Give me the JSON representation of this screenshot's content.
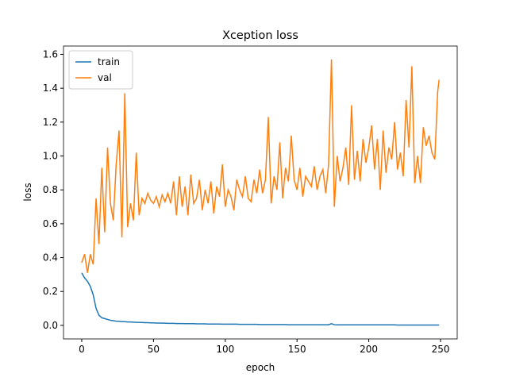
{
  "chart_data": {
    "type": "line",
    "title": "Xception loss",
    "x_label": "epoch",
    "y_label": "loss",
    "x": [
      0,
      2,
      4,
      6,
      8,
      10,
      12,
      14,
      16,
      18,
      20,
      22,
      24,
      26,
      28,
      30,
      32,
      34,
      36,
      38,
      40,
      42,
      44,
      46,
      48,
      50,
      52,
      54,
      56,
      58,
      60,
      62,
      64,
      66,
      68,
      70,
      72,
      74,
      76,
      78,
      80,
      82,
      84,
      86,
      88,
      90,
      92,
      94,
      96,
      98,
      100,
      102,
      104,
      106,
      108,
      110,
      112,
      114,
      116,
      118,
      120,
      122,
      124,
      126,
      128,
      130,
      132,
      134,
      136,
      138,
      140,
      142,
      144,
      146,
      148,
      150,
      152,
      154,
      156,
      158,
      160,
      162,
      164,
      166,
      168,
      170,
      172,
      174,
      176,
      178,
      180,
      182,
      184,
      186,
      188,
      190,
      192,
      194,
      196,
      198,
      200,
      202,
      204,
      206,
      208,
      210,
      212,
      214,
      216,
      218,
      220,
      222,
      224,
      226,
      228,
      230,
      232,
      234,
      236,
      238,
      240,
      242,
      244,
      246,
      248,
      249
    ],
    "series": [
      {
        "name": "train",
        "color": "#1f77b4",
        "values": [
          0.31,
          0.28,
          0.26,
          0.23,
          0.18,
          0.1,
          0.06,
          0.045,
          0.04,
          0.035,
          0.03,
          0.028,
          0.025,
          0.024,
          0.022,
          0.022,
          0.02,
          0.02,
          0.019,
          0.018,
          0.018,
          0.017,
          0.016,
          0.016,
          0.015,
          0.015,
          0.014,
          0.014,
          0.013,
          0.013,
          0.012,
          0.012,
          0.012,
          0.011,
          0.011,
          0.011,
          0.01,
          0.01,
          0.01,
          0.01,
          0.009,
          0.009,
          0.009,
          0.009,
          0.008,
          0.008,
          0.008,
          0.008,
          0.008,
          0.007,
          0.007,
          0.007,
          0.007,
          0.007,
          0.007,
          0.006,
          0.006,
          0.006,
          0.006,
          0.006,
          0.006,
          0.006,
          0.005,
          0.005,
          0.005,
          0.005,
          0.005,
          0.005,
          0.005,
          0.005,
          0.005,
          0.005,
          0.004,
          0.004,
          0.004,
          0.004,
          0.004,
          0.004,
          0.004,
          0.004,
          0.004,
          0.004,
          0.004,
          0.004,
          0.004,
          0.004,
          0.004,
          0.01,
          0.004,
          0.003,
          0.003,
          0.003,
          0.003,
          0.003,
          0.003,
          0.003,
          0.003,
          0.003,
          0.003,
          0.003,
          0.003,
          0.003,
          0.003,
          0.003,
          0.003,
          0.003,
          0.003,
          0.003,
          0.003,
          0.003,
          0.002,
          0.002,
          0.002,
          0.002,
          0.002,
          0.002,
          0.002,
          0.002,
          0.002,
          0.002,
          0.002,
          0.002,
          0.002,
          0.002,
          0.002,
          0.002
        ]
      },
      {
        "name": "val",
        "color": "#ff7f0e",
        "values": [
          0.37,
          0.42,
          0.31,
          0.42,
          0.36,
          0.75,
          0.48,
          0.93,
          0.55,
          1.05,
          0.72,
          0.62,
          0.95,
          1.15,
          0.52,
          1.37,
          0.58,
          0.72,
          0.62,
          1.02,
          0.65,
          0.75,
          0.72,
          0.78,
          0.74,
          0.72,
          0.76,
          0.7,
          0.77,
          0.73,
          0.78,
          0.72,
          0.85,
          0.65,
          0.88,
          0.7,
          0.82,
          0.65,
          0.89,
          0.72,
          0.75,
          0.86,
          0.68,
          0.8,
          0.72,
          0.85,
          0.66,
          0.82,
          0.76,
          0.95,
          0.7,
          0.8,
          0.76,
          0.68,
          0.86,
          0.8,
          0.76,
          0.88,
          0.75,
          0.73,
          0.86,
          0.78,
          0.92,
          0.78,
          0.86,
          1.23,
          0.72,
          0.88,
          0.8,
          1.08,
          0.75,
          0.93,
          0.85,
          1.12,
          0.86,
          0.8,
          0.93,
          0.76,
          0.88,
          0.85,
          0.82,
          0.94,
          0.8,
          0.88,
          0.92,
          0.78,
          0.95,
          1.57,
          0.7,
          1.0,
          0.85,
          0.93,
          1.05,
          0.83,
          1.3,
          0.86,
          1.03,
          0.85,
          1.1,
          0.96,
          1.05,
          1.18,
          0.92,
          1.1,
          0.8,
          1.15,
          0.9,
          1.05,
          0.98,
          1.2,
          0.92,
          1.02,
          0.88,
          1.33,
          1.05,
          1.53,
          0.84,
          1.0,
          0.84,
          1.17,
          1.06,
          1.12,
          1.02,
          0.98,
          1.38,
          1.45
        ]
      }
    ],
    "xlim": [
      -12.7,
      261.6
    ],
    "xticks": [
      0,
      50,
      100,
      150,
      200,
      250
    ],
    "ylim": [
      -0.08,
      1.649
    ],
    "yticks": [
      {
        "value": 0,
        "label": "0.0"
      },
      0.2,
      0.4,
      0.6,
      0.8,
      {
        "value": 1,
        "label": "1.0"
      },
      1.2,
      1.4,
      1.6
    ],
    "legend": "upper left"
  }
}
